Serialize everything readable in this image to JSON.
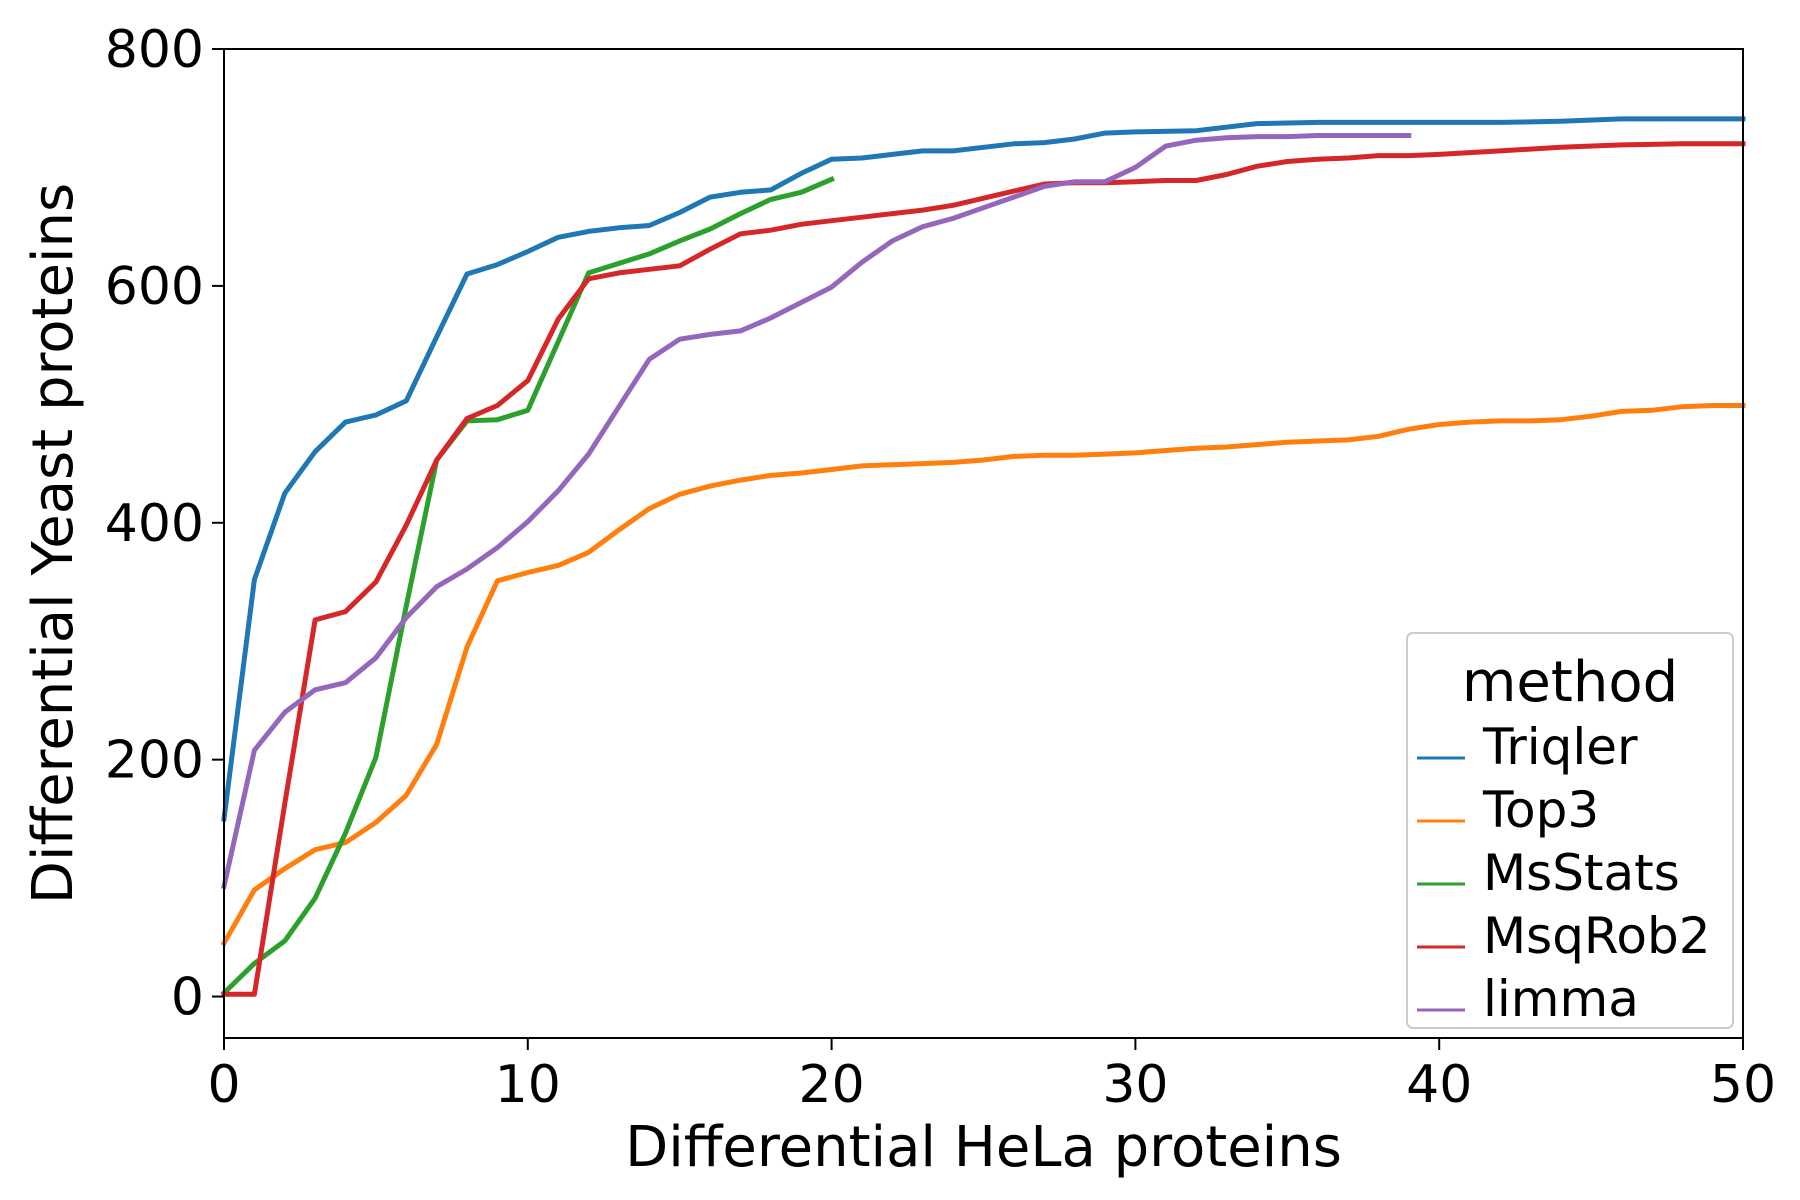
{
  "chart_data": {
    "type": "line",
    "title": "",
    "xlabel": "Differential HeLa proteins",
    "ylabel": "Differential Yeast proteins",
    "xlim": [
      0,
      50
    ],
    "ylim": [
      -35,
      800
    ],
    "xticks": [
      0,
      10,
      20,
      30,
      40,
      50
    ],
    "yticks": [
      0,
      200,
      400,
      600,
      800
    ],
    "grid": false,
    "legend": {
      "title": "method",
      "placement": "bottom-right"
    },
    "series": [
      {
        "name": "Triqler",
        "color": "#1f77b4",
        "x": [
          0,
          1,
          2,
          3,
          4,
          5,
          6,
          7,
          8,
          9,
          10,
          11,
          12,
          13,
          14,
          15,
          16,
          17,
          18,
          19,
          20,
          21,
          22,
          23,
          24,
          25,
          26,
          27,
          28,
          29,
          30,
          32,
          34,
          36,
          38,
          40,
          42,
          44,
          46,
          48,
          50
        ],
        "y": [
          150,
          352,
          425,
          460,
          485,
          491,
          503,
          557,
          610,
          618,
          629,
          641,
          646,
          649,
          651,
          662,
          675,
          679,
          681,
          695,
          707,
          708,
          711,
          714,
          714,
          717,
          720,
          721,
          724,
          729,
          730,
          731,
          737,
          738,
          738,
          738,
          738,
          739,
          741,
          741,
          741
        ]
      },
      {
        "name": "Top3",
        "color": "#ff7f0e",
        "x": [
          0,
          1,
          2,
          3,
          4,
          5,
          6,
          7,
          8,
          9,
          10,
          11,
          12,
          13,
          14,
          15,
          16,
          17,
          18,
          19,
          20,
          21,
          22,
          23,
          24,
          25,
          26,
          27,
          28,
          29,
          30,
          31,
          32,
          33,
          34,
          35,
          36,
          37,
          38,
          39,
          40,
          41,
          42,
          43,
          44,
          45,
          46,
          47,
          48,
          49,
          50
        ],
        "y": [
          45,
          90,
          108,
          124,
          130,
          147,
          170,
          213,
          295,
          351,
          358,
          364,
          375,
          394,
          412,
          424,
          431,
          436,
          440,
          442,
          445,
          448,
          449,
          450,
          451,
          453,
          456,
          457,
          457,
          458,
          459,
          461,
          463,
          464,
          466,
          468,
          469,
          470,
          473,
          479,
          483,
          485,
          486,
          486,
          487,
          490,
          494,
          495,
          498,
          499,
          499
        ]
      },
      {
        "name": "MsStats",
        "color": "#2ca02c",
        "x": [
          0,
          1,
          2,
          3,
          4,
          5,
          6,
          7,
          8,
          9,
          10,
          11,
          12,
          13,
          14,
          15,
          16,
          17,
          18,
          19,
          20
        ],
        "y": [
          3,
          28,
          47,
          83,
          138,
          202,
          330,
          453,
          486,
          487,
          495,
          553,
          611,
          619,
          627,
          638,
          648,
          661,
          673,
          679,
          690
        ]
      },
      {
        "name": "MsqRob2",
        "color": "#d62728",
        "x": [
          0,
          1,
          2,
          3,
          4,
          5,
          6,
          7,
          8,
          9,
          10,
          11,
          12,
          13,
          14,
          15,
          16,
          17,
          18,
          19,
          20,
          21,
          22,
          23,
          24,
          25,
          26,
          27,
          28,
          29,
          30,
          31,
          32,
          33,
          34,
          35,
          36,
          37,
          38,
          39,
          40,
          42,
          44,
          46,
          48,
          50
        ],
        "y": [
          2,
          2,
          163,
          318,
          325,
          350,
          398,
          453,
          488,
          499,
          520,
          572,
          606,
          611,
          614,
          617,
          631,
          644,
          647,
          652,
          655,
          658,
          661,
          664,
          668,
          674,
          680,
          686,
          687,
          687,
          688,
          689,
          689,
          694,
          701,
          705,
          707,
          708,
          710,
          710,
          711,
          714,
          717,
          719,
          720,
          720
        ]
      },
      {
        "name": "limma",
        "color": "#9467bd",
        "x": [
          0,
          1,
          2,
          3,
          4,
          5,
          6,
          7,
          8,
          9,
          10,
          11,
          12,
          13,
          14,
          15,
          16,
          17,
          18,
          19,
          20,
          21,
          22,
          23,
          24,
          25,
          26,
          27,
          28,
          29,
          30,
          31,
          32,
          33,
          34,
          35,
          36,
          37,
          38,
          39
        ],
        "y": [
          93,
          208,
          240,
          259,
          265,
          286,
          320,
          346,
          361,
          379,
          401,
          427,
          458,
          498,
          538,
          555,
          559,
          562,
          573,
          586,
          599,
          620,
          638,
          650,
          657,
          666,
          675,
          684,
          688,
          688,
          700,
          718,
          723,
          725,
          726,
          726,
          727,
          727,
          727,
          727
        ]
      }
    ]
  }
}
